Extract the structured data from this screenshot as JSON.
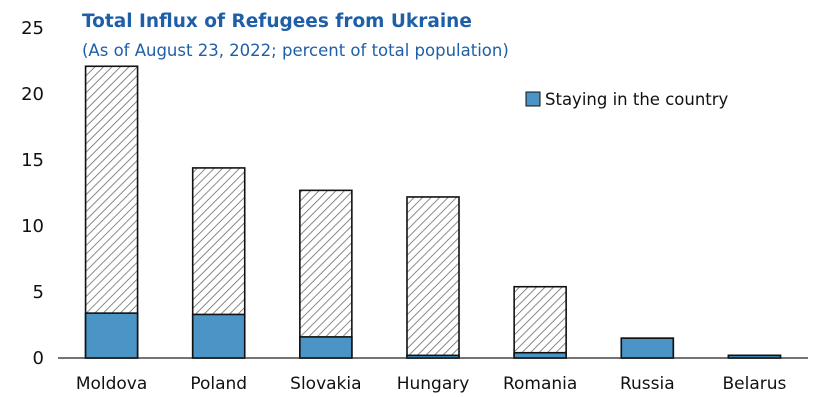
{
  "chart_data": {
    "type": "bar",
    "title": "Total Influx of Refugees from Ukraine",
    "subtitle": "(As of August 23, 2022; percent of total population)",
    "categories": [
      "Moldova",
      "Poland",
      "Slovakia",
      "Hungary",
      "Romania",
      "Russia",
      "Belarus"
    ],
    "series": [
      {
        "name": "Staying in the country",
        "values": [
          3.4,
          3.3,
          1.6,
          0.2,
          0.4,
          1.5,
          0.2
        ]
      },
      {
        "values": [
          22.1,
          14.4,
          12.7,
          12.2,
          5.4,
          1.5,
          0.2
        ]
      }
    ],
    "ylim": [
      0,
      25
    ],
    "yticks": [
      0,
      5,
      10,
      15,
      20,
      25
    ],
    "grid": false,
    "legend_position": "top-right",
    "colors": {
      "staying": "#4a94c6",
      "hatch_line": "#6b6b6b",
      "bar_outline": "#111111",
      "title": "#1f5fa8",
      "axis": "#222222"
    }
  }
}
